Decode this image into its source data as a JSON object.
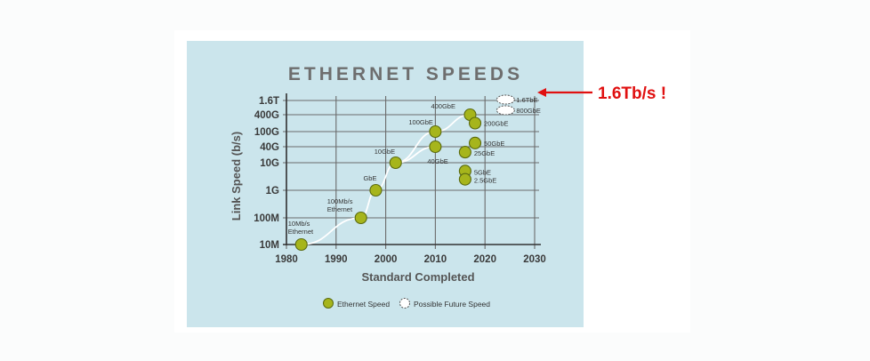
{
  "chart_data": {
    "type": "scatter",
    "title": "ETHERNET SPEEDS",
    "xlabel": "Standard Completed",
    "ylabel": "Link Speed (b/s)",
    "xlim": [
      1980,
      2030
    ],
    "x_ticks": [
      "1980",
      "1990",
      "2000",
      "2010",
      "2020",
      "2030"
    ],
    "y_ticks": [
      {
        "label": "10M",
        "value": 10000000
      },
      {
        "label": "100M",
        "value": 100000000
      },
      {
        "label": "1G",
        "value": 1000000000
      },
      {
        "label": "10G",
        "value": 10000000000
      },
      {
        "label": "40G",
        "value": 40000000000
      },
      {
        "label": "100G",
        "value": 100000000000
      },
      {
        "label": "400G",
        "value": 400000000000
      },
      {
        "label": "1.6T",
        "value": 1600000000000
      }
    ],
    "y_scale": "log",
    "grid": true,
    "series": [
      {
        "name": "Ethernet Speed",
        "color": "#a6b51c",
        "points": [
          {
            "x": 1983,
            "y": 10000000,
            "label": "10Mb/s\nEthernet"
          },
          {
            "x": 1995,
            "y": 100000000,
            "label": "100Mb/s\nEthernet"
          },
          {
            "x": 1998,
            "y": 1000000000,
            "label": "GbE"
          },
          {
            "x": 2002,
            "y": 10000000000,
            "label": "10GbE"
          },
          {
            "x": 2010,
            "y": 100000000000,
            "label": "100GbE"
          },
          {
            "x": 2010,
            "y": 40000000000,
            "label": "40GbE"
          },
          {
            "x": 2017,
            "y": 400000000000,
            "label": "400GbE"
          },
          {
            "x": 2018,
            "y": 200000000000,
            "label": "200GbE"
          },
          {
            "x": 2018,
            "y": 50000000000,
            "label": "50GbE"
          },
          {
            "x": 2016,
            "y": 25000000000,
            "label": "25GbE"
          },
          {
            "x": 2016,
            "y": 5000000000,
            "label": "5GbE"
          },
          {
            "x": 2016,
            "y": 2500000000,
            "label": "2.5GbE"
          }
        ]
      },
      {
        "name": "Possible Future Speed",
        "color": "#ffffff",
        "points": [
          {
            "x": 2022,
            "y": 1600000000000,
            "label": "1.6TbE"
          },
          {
            "x": 2022,
            "y": 800000000000,
            "label": "800GbE"
          }
        ]
      }
    ],
    "legend": {
      "placement": "bottom-center",
      "items": [
        "Ethernet Speed",
        "Possible Future Speed"
      ]
    },
    "annotation": {
      "text": "1.6Tb/s !",
      "color": "#e01010",
      "points_to": "1.6TbE"
    }
  }
}
